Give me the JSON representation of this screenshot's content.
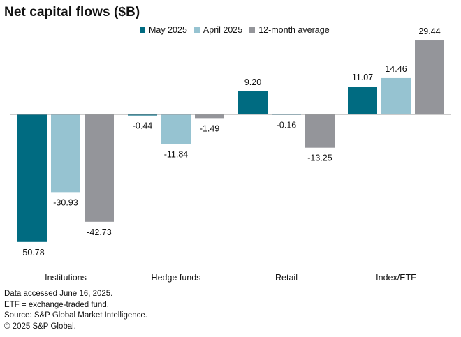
{
  "chart_data": {
    "type": "bar",
    "title": "Net capital flows ($B)",
    "categories": [
      "Institutions",
      "Hedge funds",
      "Retail",
      "Index/ETF"
    ],
    "series": [
      {
        "name": "May 2025",
        "color": "#006b81",
        "values": [
          -50.78,
          -0.44,
          9.2,
          11.07
        ],
        "labels": [
          "-50.78",
          "-0.44",
          "9.20",
          "11.07"
        ]
      },
      {
        "name": "April 2025",
        "color": "#96c3d1",
        "values": [
          -30.93,
          -11.84,
          -0.16,
          14.46
        ],
        "labels": [
          "-30.93",
          "-11.84",
          "-0.16",
          "14.46"
        ]
      },
      {
        "name": "12-month average",
        "color": "#94959a",
        "values": [
          -42.73,
          -1.49,
          -13.25,
          29.44
        ],
        "labels": [
          "-42.73",
          "-1.49",
          "-13.25",
          "29.44"
        ]
      }
    ],
    "ylim": [
      -52,
      30
    ],
    "xlabel": "",
    "ylabel": ""
  },
  "notes": [
    "Data accessed June 16, 2025.",
    "ETF = exchange-traded fund.",
    "Source: S&P Global Market Intelligence.",
    "© 2025 S&P Global."
  ]
}
